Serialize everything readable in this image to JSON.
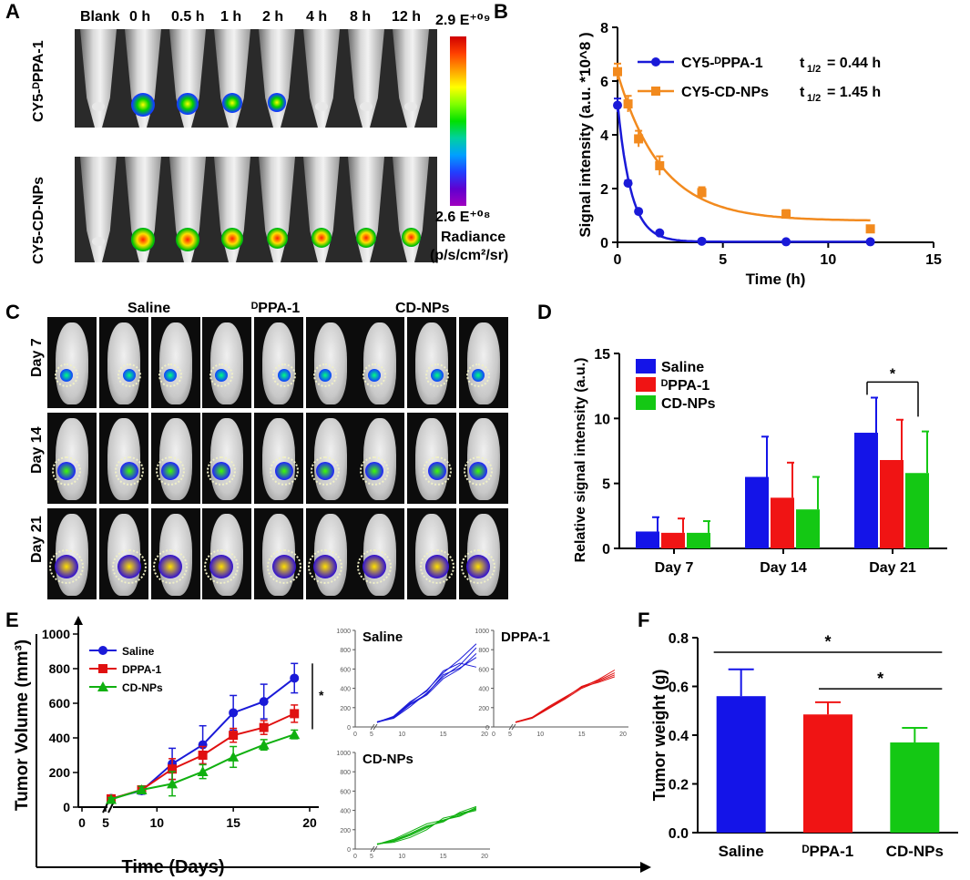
{
  "panels": {
    "A": "A",
    "B": "B",
    "C": "C",
    "D": "D",
    "E": "E",
    "F": "F"
  },
  "panelA": {
    "timepoints": [
      "Blank",
      "0 h",
      "0.5 h",
      "1 h",
      "2 h",
      "4 h",
      "8 h",
      "12 h"
    ],
    "row_labels": [
      "CY5-ᴰPPA-1",
      "CY5-CD-NPs"
    ],
    "colorbar_max": "2.9 E⁺⁰⁹",
    "colorbar_min": "2.6 E⁺⁰⁸",
    "radiance_label": "Radiance",
    "radiance_unit": "(p/s/cm²/sr)",
    "row1_signal": [
      0,
      1.0,
      0.75,
      0.6,
      0.45,
      0,
      0,
      0
    ],
    "row2_signal": [
      0,
      0.95,
      1.0,
      0.8,
      0.7,
      0.6,
      0.55,
      0.5
    ]
  },
  "panelC": {
    "groups": [
      "Saline",
      "ᴰPPA-1",
      "CD-NPs"
    ],
    "days": [
      "Day 7",
      "Day 14",
      "Day 21"
    ]
  },
  "panelE_small": {
    "titles": [
      "Saline",
      "DPPA-1",
      "CD-NPs"
    ],
    "colors": [
      "#1a1ad8",
      "#e01010",
      "#10b010"
    ],
    "x_ticks": [
      "0",
      "5",
      "10",
      "15",
      "20"
    ],
    "x_tick_values": [
      0,
      5,
      10,
      15,
      20
    ],
    "days": [
      7,
      9,
      11,
      13,
      15,
      17,
      19
    ],
    "mice": {
      "Saline": [
        [
          50,
          90,
          210,
          350,
          520,
          640,
          820
        ],
        [
          45,
          100,
          250,
          380,
          560,
          700,
          860
        ],
        [
          55,
          95,
          230,
          330,
          500,
          600,
          760
        ],
        [
          48,
          110,
          260,
          370,
          580,
          660,
          620
        ],
        [
          52,
          105,
          240,
          340,
          540,
          610,
          720
        ]
      ],
      "DPPA-1": [
        [
          50,
          95,
          200,
          300,
          420,
          480,
          560
        ],
        [
          45,
          90,
          190,
          290,
          400,
          470,
          540
        ],
        [
          52,
          100,
          210,
          310,
          410,
          490,
          590
        ],
        [
          48,
          98,
          195,
          305,
          415,
          460,
          520
        ]
      ],
      "CD-NPs": [
        [
          50,
          80,
          140,
          220,
          300,
          340,
          420
        ],
        [
          45,
          90,
          160,
          240,
          280,
          380,
          440
        ],
        [
          55,
          70,
          120,
          200,
          320,
          360,
          400
        ],
        [
          48,
          100,
          180,
          260,
          300,
          350,
          430
        ],
        [
          52,
          85,
          150,
          230,
          290,
          370,
          410
        ]
      ]
    }
  },
  "chart_data": [
    {
      "panel": "B",
      "type": "line",
      "title": "",
      "xlabel": "Time (h)",
      "ylabel": "Signal intensity (a.u. *10^8 )",
      "xlim": [
        0,
        15
      ],
      "ylim": [
        0,
        8
      ],
      "x_ticks": [
        0,
        5,
        10,
        15
      ],
      "y_ticks": [
        0,
        2,
        4,
        6,
        8
      ],
      "legend": "top-right",
      "series": [
        {
          "name": "CY5-ᴰPPA-1",
          "t_half_label": "t",
          "t_half_sub": "1/2",
          "t_half_value": "= 0.44 h",
          "color": "#1a1ad8",
          "marker": "circle",
          "x": [
            0,
            0.5,
            1,
            2,
            4,
            8,
            12
          ],
          "values": [
            5.1,
            2.2,
            1.15,
            0.35,
            0.04,
            0.02,
            0.02
          ],
          "error": [
            0.25,
            0.1,
            0.05,
            0.05,
            0.02,
            0.02,
            0.02
          ],
          "fit_y0": 5.2,
          "fit_k": 1.575,
          "fit_plateau": 0.02
        },
        {
          "name": "CY5-CD-NPs",
          "t_half_label": "t",
          "t_half_sub": "1/2",
          "t_half_value": "= 1.45 h",
          "color": "#f28a1e",
          "marker": "square",
          "x": [
            0,
            0.5,
            1,
            2,
            4,
            8,
            12
          ],
          "values": [
            6.35,
            5.15,
            3.85,
            2.85,
            1.85,
            1.05,
            0.5
          ],
          "error": [
            0.3,
            0.3,
            0.3,
            0.35,
            0.2,
            0.15,
            0.1
          ],
          "fit_y0": 6.3,
          "fit_k": 0.478,
          "fit_plateau": 0.8
        }
      ]
    },
    {
      "panel": "D",
      "type": "bar",
      "title": "",
      "xlabel": "",
      "ylabel": "Relative signal intensity (a.u.)",
      "categories": [
        "Day 7",
        "Day 14",
        "Day 21"
      ],
      "ylim": [
        0,
        15
      ],
      "y_ticks": [
        0,
        5,
        10,
        15
      ],
      "legend": "top-left",
      "series": [
        {
          "name": "Saline",
          "color": "#1414e8",
          "values": [
            1.3,
            5.5,
            8.9
          ],
          "error": [
            1.1,
            3.1,
            2.7
          ]
        },
        {
          "name": "ᴰPPA-1",
          "color": "#f01414",
          "values": [
            1.2,
            3.9,
            6.8
          ],
          "error": [
            1.1,
            2.7,
            3.1
          ]
        },
        {
          "name": "CD-NPs",
          "color": "#14c814",
          "values": [
            1.2,
            3.0,
            5.8
          ],
          "error": [
            0.9,
            2.5,
            3.2
          ]
        }
      ],
      "significance": {
        "label": "*",
        "between": [
          "Saline",
          "CD-NPs"
        ],
        "category": "Day 21"
      }
    },
    {
      "panel": "E",
      "type": "line",
      "title": "",
      "xlabel": "Time (Days)",
      "ylabel": "Tumor Volume (mm³)",
      "xlim": [
        0,
        20
      ],
      "ylim": [
        0,
        1000
      ],
      "x_ticks": [
        0,
        5,
        10,
        15,
        20
      ],
      "y_ticks": [
        0,
        200,
        400,
        600,
        800,
        1000
      ],
      "legend": "top-left",
      "series": [
        {
          "name": "Saline",
          "color": "#1a1ad8",
          "marker": "circle",
          "x": [
            7,
            9,
            11,
            13,
            15,
            17,
            19
          ],
          "values": [
            50,
            95,
            250,
            360,
            545,
            610,
            745
          ],
          "error": [
            15,
            20,
            90,
            110,
            100,
            100,
            85
          ]
        },
        {
          "name": "DPPA-1",
          "color": "#e01010",
          "marker": "square",
          "x": [
            7,
            9,
            11,
            13,
            15,
            17,
            19
          ],
          "values": [
            48,
            100,
            220,
            300,
            415,
            460,
            540
          ],
          "error": [
            10,
            20,
            60,
            50,
            40,
            40,
            50
          ]
        },
        {
          "name": "CD-NPs",
          "color": "#10b010",
          "marker": "triangle",
          "x": [
            7,
            9,
            11,
            13,
            15,
            17,
            19
          ],
          "values": [
            45,
            100,
            135,
            205,
            290,
            360,
            420
          ],
          "error": [
            10,
            20,
            70,
            40,
            60,
            30,
            25
          ]
        }
      ],
      "significance": {
        "label": "*"
      }
    },
    {
      "panel": "F",
      "type": "bar",
      "title": "",
      "xlabel": "",
      "ylabel": "Tumor weight (g)",
      "categories": [
        "Saline",
        "ᴰPPA-1",
        "CD-NPs"
      ],
      "ylim": [
        0,
        0.8
      ],
      "y_ticks": [
        0.0,
        0.2,
        0.4,
        0.6,
        0.8
      ],
      "y_tick_labels": [
        "0.0",
        "0.2",
        "0.4",
        "0.6",
        "0.8"
      ],
      "colors": [
        "#1414e8",
        "#f01414",
        "#14c814"
      ],
      "values": [
        0.56,
        0.485,
        0.37
      ],
      "error": [
        0.11,
        0.05,
        0.06
      ],
      "significance": [
        {
          "label": "*",
          "between": [
            "Saline",
            "CD-NPs"
          ]
        },
        {
          "label": "*",
          "between": [
            "ᴰPPA-1",
            "CD-NPs"
          ]
        }
      ]
    }
  ]
}
